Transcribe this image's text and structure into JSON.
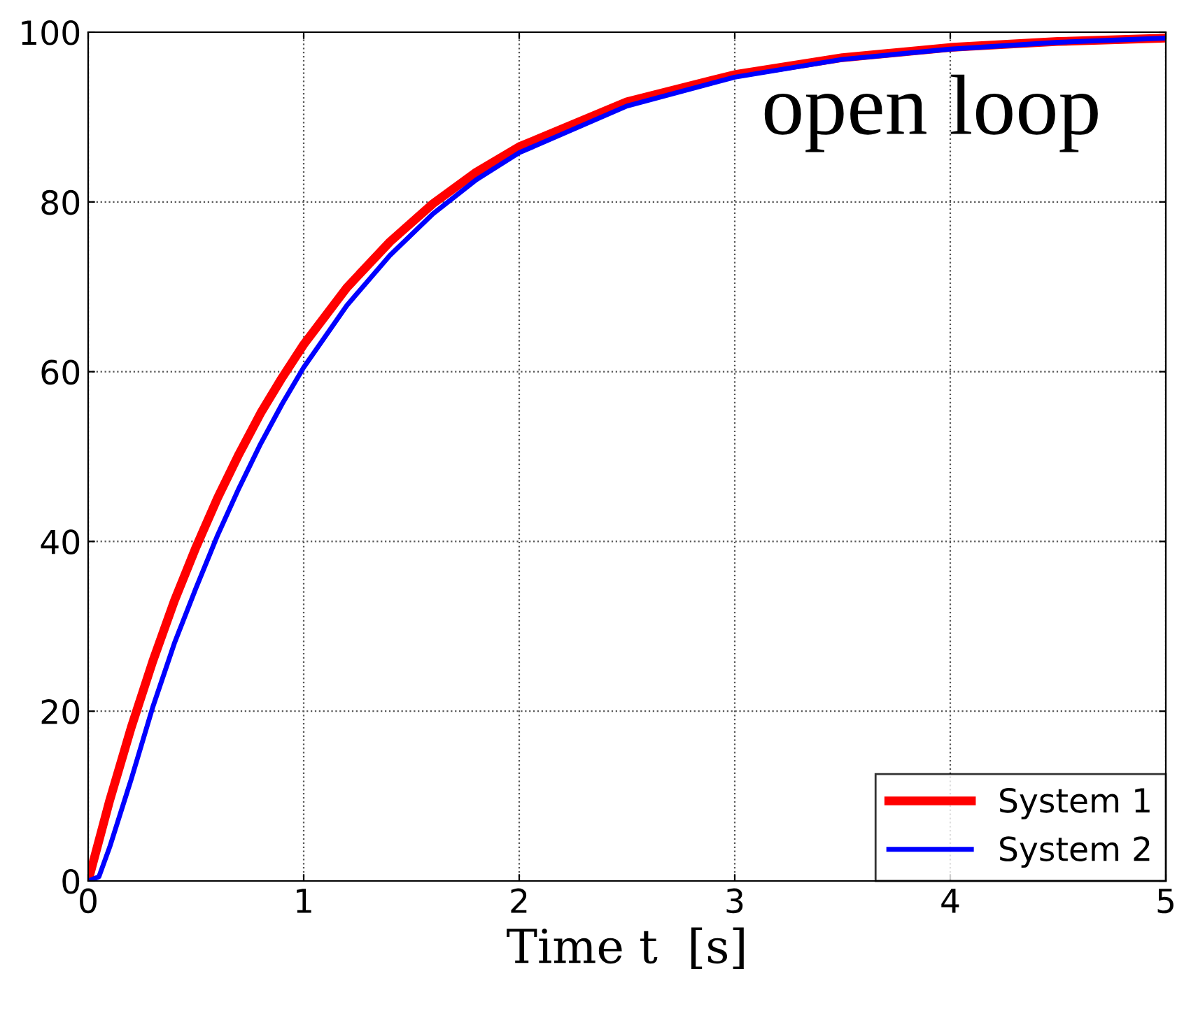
{
  "chart_data": {
    "type": "line",
    "xlabel": "Time t  [s]",
    "annotations": [
      "open loop"
    ],
    "xlim": [
      0,
      5
    ],
    "ylim": [
      0,
      100
    ],
    "xticks": [
      0,
      1,
      2,
      3,
      4,
      5
    ],
    "yticks": [
      0,
      20,
      40,
      60,
      80,
      100
    ],
    "grid": true,
    "legend": "bottom right",
    "line_style": "solid",
    "series": [
      {
        "name": "System 1",
        "color": "#ff0000",
        "x": [
          0,
          0.1,
          0.2,
          0.3,
          0.4,
          0.5,
          0.6,
          0.7,
          0.8,
          0.9,
          1.0,
          1.2,
          1.4,
          1.6,
          1.8,
          2.0,
          2.5,
          3.0,
          3.5,
          4.0,
          4.5,
          5.0
        ],
        "values": [
          0,
          9.5,
          18.1,
          25.9,
          33.0,
          39.3,
          45.1,
          50.3,
          55.1,
          59.3,
          63.2,
          69.9,
          75.3,
          79.8,
          83.5,
          86.5,
          91.8,
          95.0,
          97.0,
          98.2,
          98.9,
          99.3
        ]
      },
      {
        "name": "System 2",
        "color": "#0000ff",
        "x": [
          0,
          0.05,
          0.1,
          0.2,
          0.3,
          0.4,
          0.5,
          0.6,
          0.7,
          0.8,
          0.9,
          1.0,
          1.2,
          1.4,
          1.6,
          1.8,
          2.0,
          2.5,
          3.0,
          3.5,
          4.0,
          4.5,
          5.0
        ],
        "values": [
          0,
          0.5,
          4,
          12,
          20.5,
          28,
          34.5,
          40.7,
          46.3,
          51.5,
          56.2,
          60.5,
          67.8,
          73.7,
          78.6,
          82.6,
          85.8,
          91.3,
          94.7,
          96.8,
          98.0,
          98.8,
          99.3
        ]
      }
    ]
  }
}
